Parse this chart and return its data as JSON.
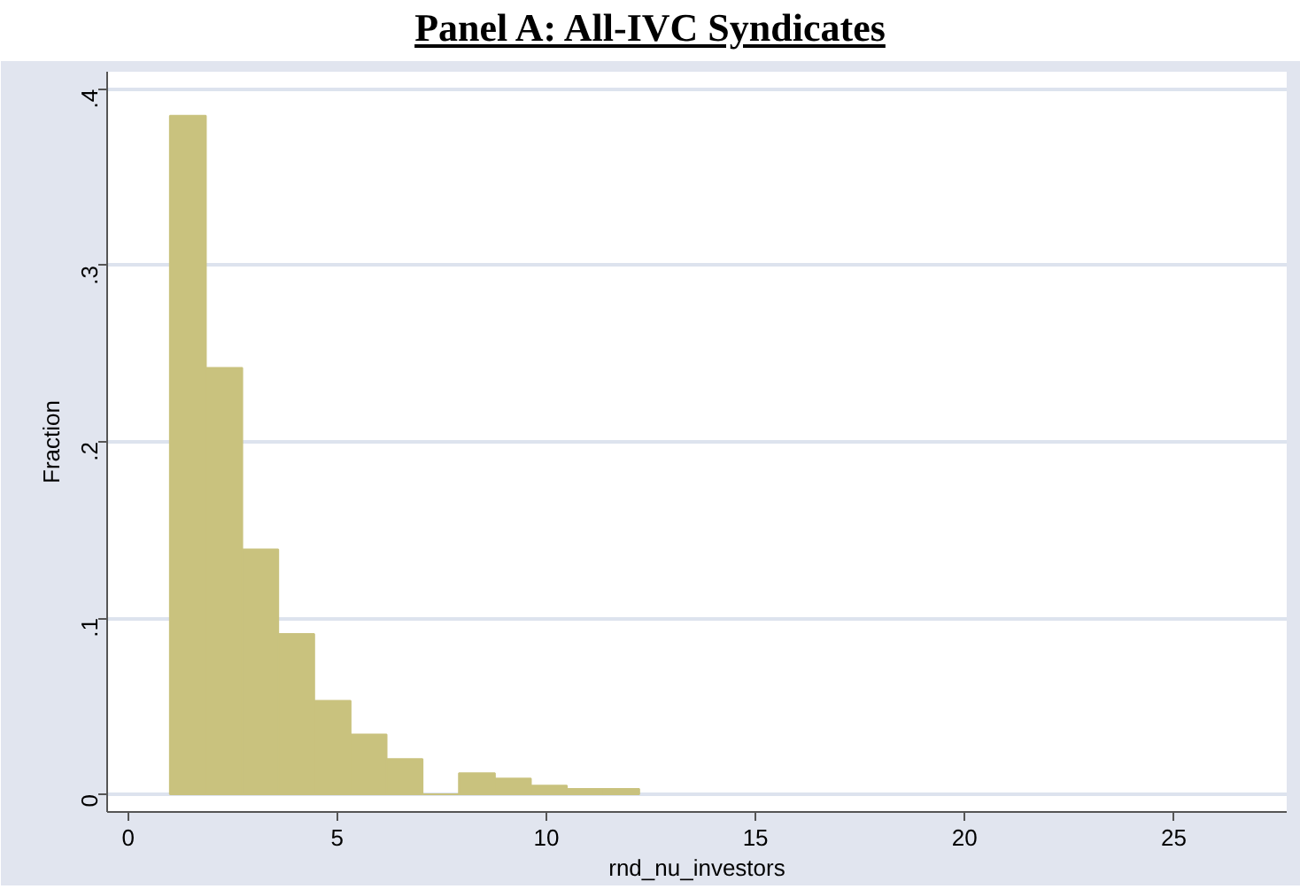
{
  "chart_data": {
    "type": "histogram",
    "title": "Panel A:  All-IVC  Syndicates",
    "xlabel": "rnd_nu_investors",
    "ylabel": "Fraction",
    "bins": [
      1,
      1.86,
      2.73,
      3.59,
      4.45,
      5.32,
      6.18,
      7.04,
      7.91,
      8.77,
      9.63,
      10.49,
      11.36,
      12.22
    ],
    "values": [
      0.385,
      0.242,
      0.139,
      0.091,
      0.053,
      0.034,
      0.02,
      0,
      0.012,
      0.009,
      0.005,
      0.003,
      0.003
    ],
    "color": "#c9c27e",
    "xlim": [
      -0.5,
      27.7
    ],
    "ylim": [
      -0.01,
      0.41
    ],
    "xticks": [
      0,
      5,
      10,
      15,
      20,
      25
    ],
    "yticks": [
      {
        "value": 0,
        "label": "0"
      },
      {
        "value": 0.1,
        "label": ".1"
      },
      {
        "value": 0.2,
        "label": ".2"
      },
      {
        "value": 0.3,
        "label": ".3"
      },
      {
        "value": 0.4,
        "label": ".4"
      }
    ],
    "grid": "y"
  }
}
